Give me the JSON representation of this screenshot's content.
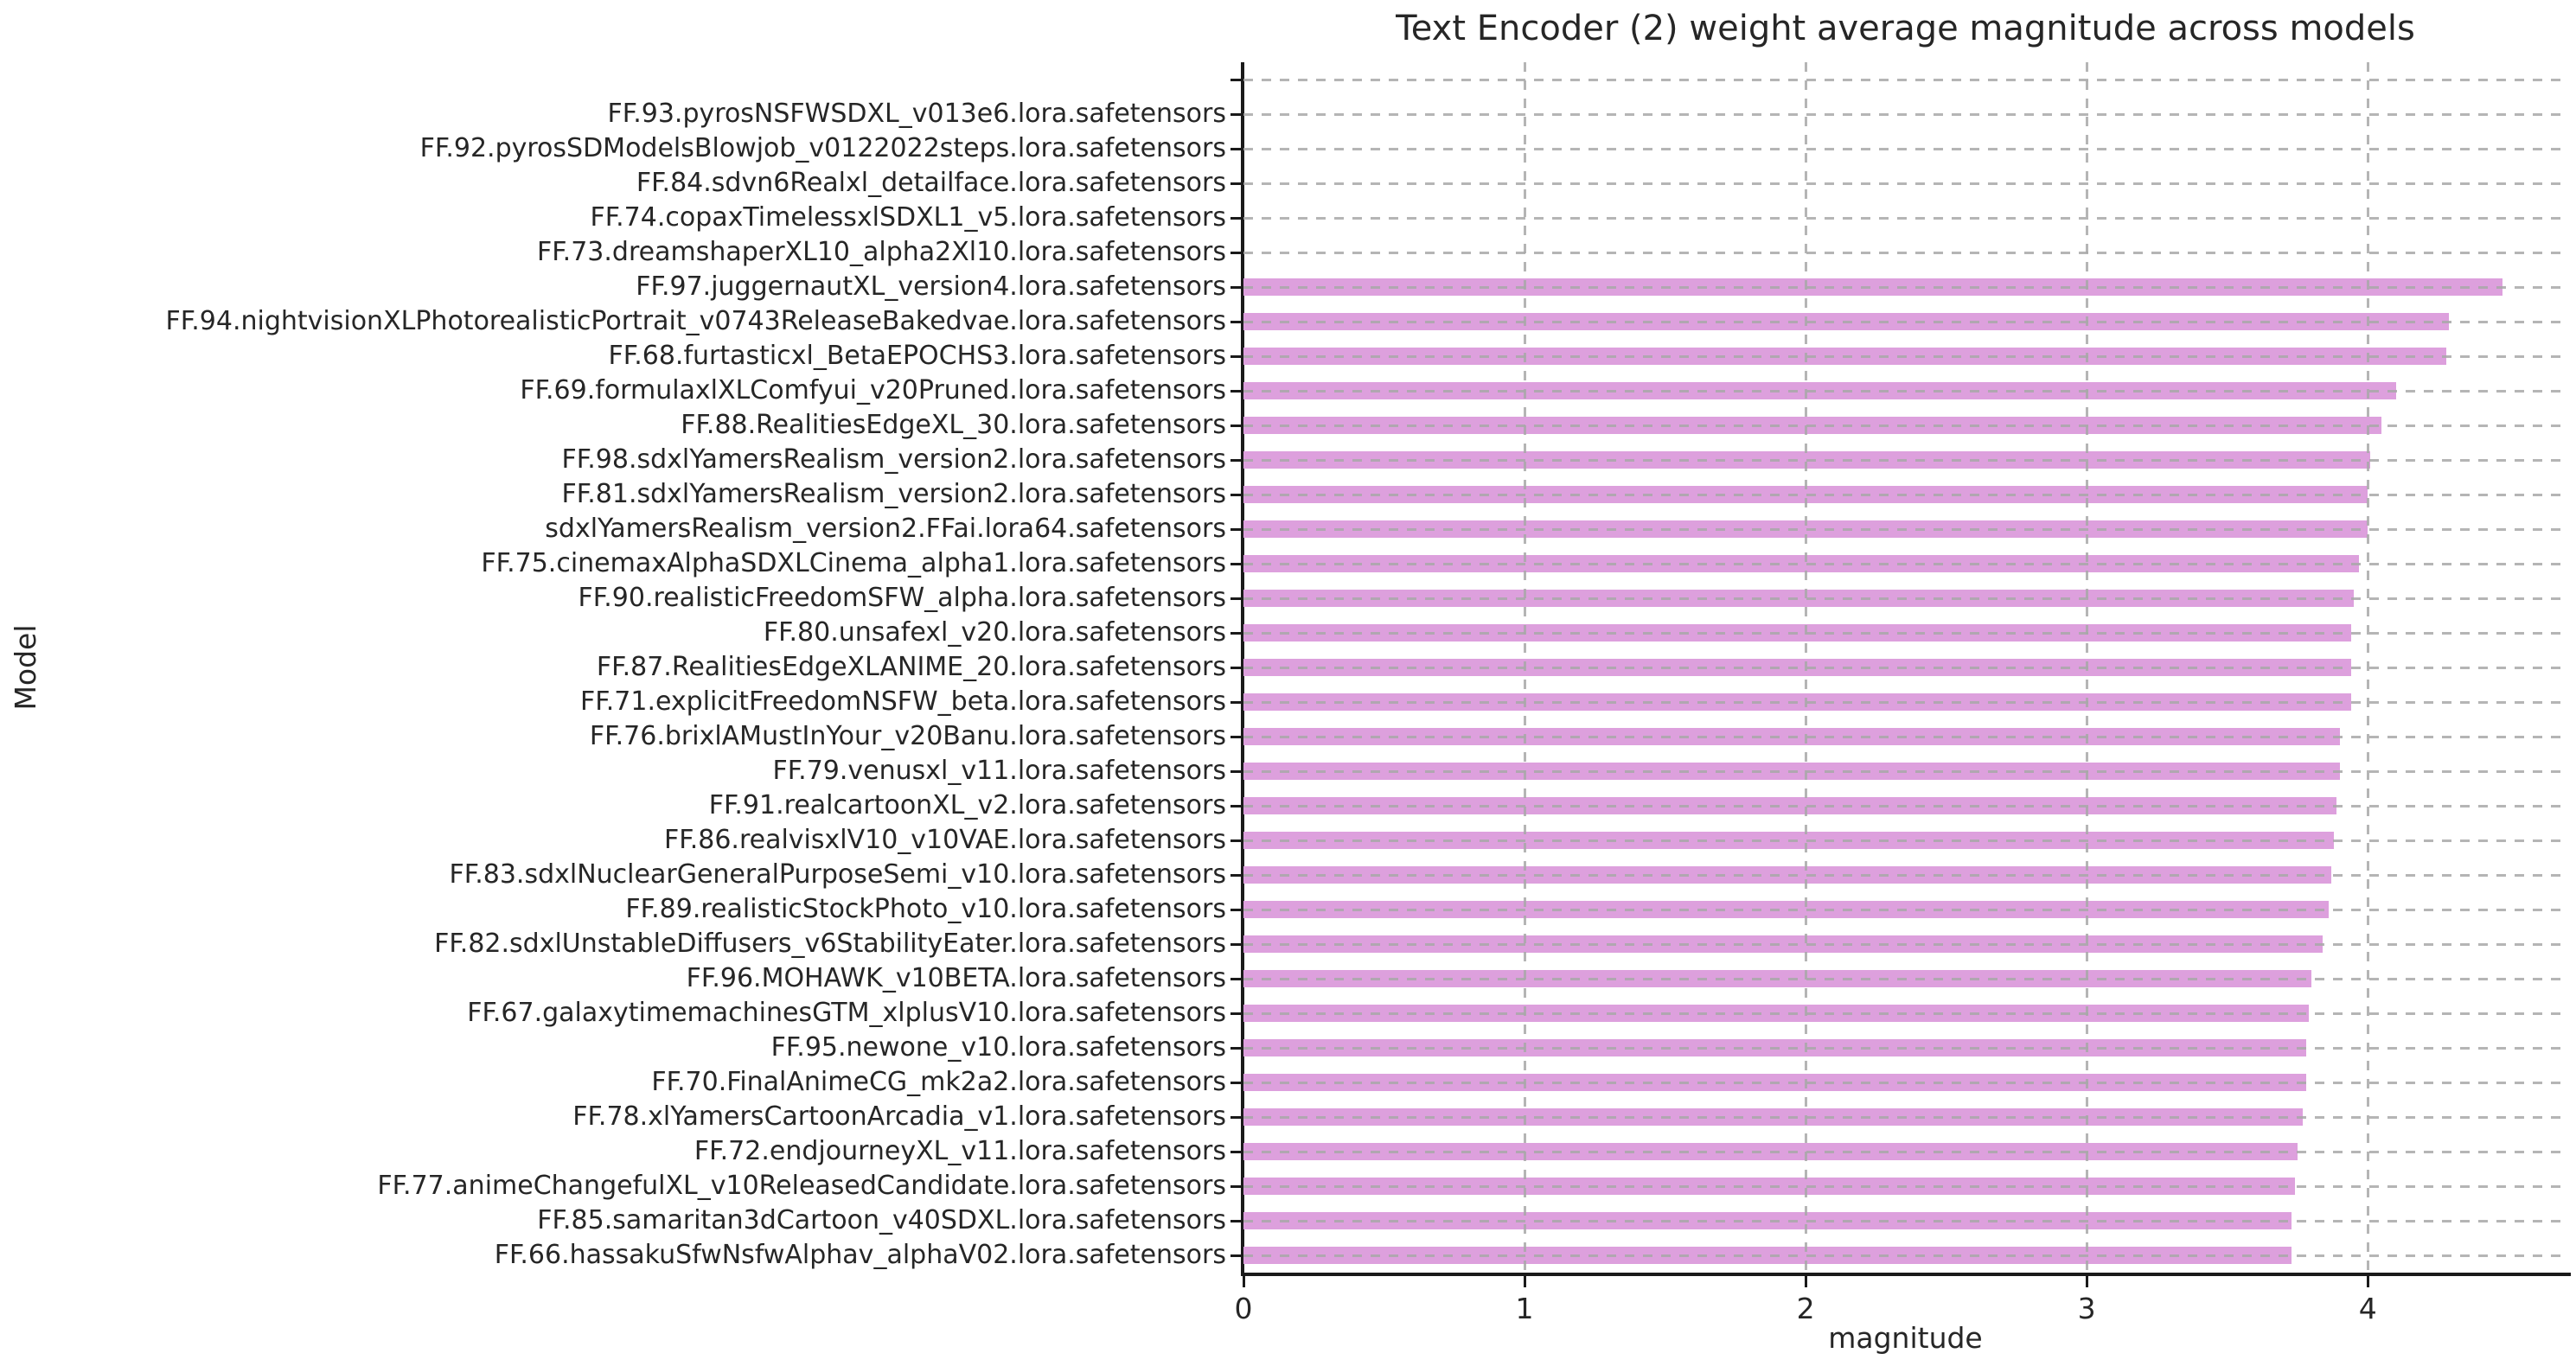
{
  "chart_data": {
    "type": "bar",
    "orientation": "horizontal",
    "title": "Text Encoder (2) weight average magnitude across models",
    "xlabel": "magnitude",
    "ylabel": "Model",
    "xlim": [
      0,
      4.71
    ],
    "x_ticks": [
      0,
      1,
      2,
      3,
      4
    ],
    "grid": "dashed-horizontal-and-vertical",
    "legend": "none",
    "bar_color": "#dda0dd",
    "spine_color": "#1a1a1a",
    "gridline_color": "#a8a8a8",
    "background_color": "#ffffff",
    "row_order": "top-to-bottom",
    "categories": [
      "",
      "FF.93.pyrosNSFWSDXL_v013e6.lora.safetensors",
      "FF.92.pyrosSDModelsBlowjob_v0122022steps.lora.safetensors",
      "FF.84.sdvn6Realxl_detailface.lora.safetensors",
      "FF.74.copaxTimelessxlSDXL1_v5.lora.safetensors",
      "FF.73.dreamshaperXL10_alpha2Xl10.lora.safetensors",
      "FF.97.juggernautXL_version4.lora.safetensors",
      "FF.94.nightvisionXLPhotorealisticPortrait_v0743ReleaseBakedvae.lora.safetensors",
      "FF.68.furtasticxl_BetaEPOCHS3.lora.safetensors",
      "FF.69.formulaxlXLComfyui_v20Pruned.lora.safetensors",
      "FF.88.RealitiesEdgeXL_30.lora.safetensors",
      "FF.98.sdxlYamersRealism_version2.lora.safetensors",
      "FF.81.sdxlYamersRealism_version2.lora.safetensors",
      "sdxlYamersRealism_version2.FFai.lora64.safetensors",
      "FF.75.cinemaxAlphaSDXLCinema_alpha1.lora.safetensors",
      "FF.90.realisticFreedomSFW_alpha.lora.safetensors",
      "FF.80.unsafexl_v20.lora.safetensors",
      "FF.87.RealitiesEdgeXLANIME_20.lora.safetensors",
      "FF.71.explicitFreedomNSFW_beta.lora.safetensors",
      "FF.76.brixlAMustInYour_v20Banu.lora.safetensors",
      "FF.79.venusxl_v11.lora.safetensors",
      "FF.91.realcartoonXL_v2.lora.safetensors",
      "FF.86.realvisxlV10_v10VAE.lora.safetensors",
      "FF.83.sdxlNuclearGeneralPurposeSemi_v10.lora.safetensors",
      "FF.89.realisticStockPhoto_v10.lora.safetensors",
      "FF.82.sdxlUnstableDiffusers_v6StabilityEater.lora.safetensors",
      "FF.96.MOHAWK_v10BETA.lora.safetensors",
      "FF.67.galaxytimemachinesGTM_xlplusV10.lora.safetensors",
      "FF.95.newone_v10.lora.safetensors",
      "FF.70.FinalAnimeCG_mk2a2.lora.safetensors",
      "FF.78.xlYamersCartoonArcadia_v1.lora.safetensors",
      "FF.72.endjourneyXL_v11.lora.safetensors",
      "FF.77.animeChangefulXL_v10ReleasedCandidate.lora.safetensors",
      "FF.85.samaritan3dCartoon_v40SDXL.lora.safetensors",
      "FF.66.hassakuSfwNsfwAlphav_alphaV02.lora.safetensors"
    ],
    "values": [
      0,
      0,
      0,
      0,
      0,
      0,
      4.48,
      4.29,
      4.28,
      4.1,
      4.05,
      4.01,
      4.0,
      4.0,
      3.97,
      3.95,
      3.94,
      3.94,
      3.94,
      3.9,
      3.9,
      3.89,
      3.88,
      3.87,
      3.86,
      3.84,
      3.8,
      3.79,
      3.78,
      3.78,
      3.77,
      3.75,
      3.74,
      3.73,
      3.73
    ]
  }
}
